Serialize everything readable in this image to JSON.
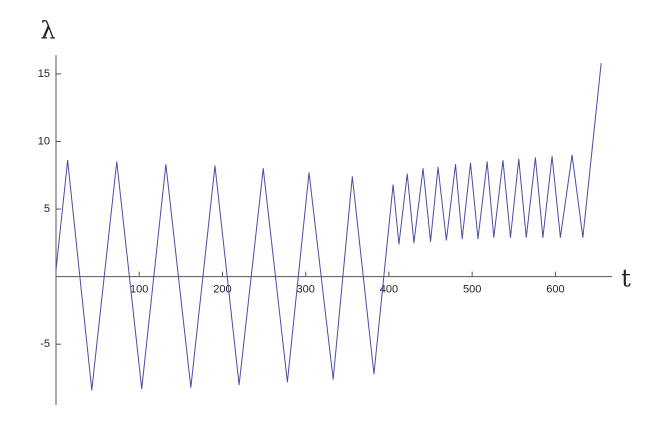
{
  "chart_data": {
    "type": "line",
    "x_label": "t",
    "y_label": "λ",
    "x": [
      0,
      14,
      43,
      73,
      103,
      132,
      162,
      191,
      220,
      249,
      278,
      304,
      333,
      356,
      382,
      405,
      412,
      422,
      430,
      441,
      450,
      459,
      469,
      480,
      488,
      498,
      507,
      518,
      526,
      537,
      546,
      556,
      565,
      576,
      585,
      596,
      606,
      620,
      633,
      655
    ],
    "series": [
      {
        "color": "#4c4ca6",
        "values": [
          0.5,
          8.6,
          -8.4,
          8.5,
          -8.3,
          8.3,
          -8.2,
          8.2,
          -8.0,
          8.0,
          -7.8,
          7.7,
          -7.6,
          7.4,
          -7.2,
          6.8,
          2.4,
          7.6,
          2.5,
          8.0,
          2.6,
          8.1,
          2.7,
          8.3,
          2.8,
          8.4,
          2.8,
          8.5,
          2.9,
          8.6,
          2.9,
          8.7,
          2.9,
          8.8,
          2.9,
          8.9,
          2.9,
          9.0,
          2.9,
          15.8
        ]
      }
    ],
    "xlim": [
      0,
      668
    ],
    "ylim": [
      -9.5,
      16.4
    ],
    "xticks": [
      100,
      200,
      300,
      400,
      500,
      600
    ],
    "yticks": [
      -5,
      5,
      10,
      15
    ],
    "grid": false
  }
}
